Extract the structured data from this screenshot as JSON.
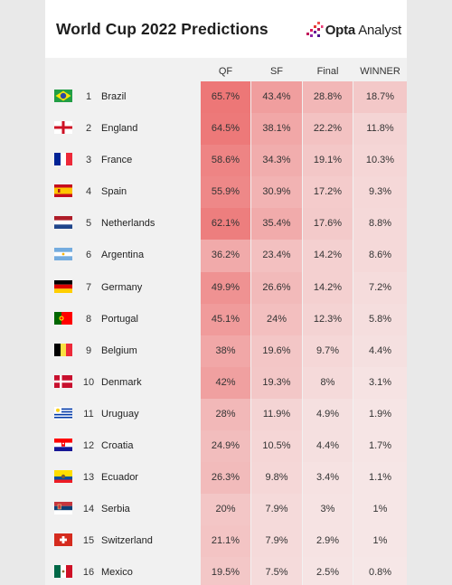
{
  "title": "World Cup 2022 Predictions",
  "brand": {
    "name_bold": "Opta",
    "name_light": " Analyst",
    "logo_icon": "opta-logo-icon"
  },
  "columns": {
    "qf": "QF",
    "sf": "SF",
    "final": "Final",
    "winner": "WINNER"
  },
  "colors": {
    "heat_base": "#f27b7b",
    "background": "#f1f1f1"
  },
  "teams": [
    {
      "rank": "1",
      "name": "Brazil",
      "flag": "brazil-flag-icon",
      "qf": "65.7%",
      "sf": "43.4%",
      "final": "28.8%",
      "winner": "18.7%",
      "qf_v": 65.7,
      "sf_v": 43.4,
      "final_v": 28.8,
      "winner_v": 18.7
    },
    {
      "rank": "2",
      "name": "England",
      "flag": "england-flag-icon",
      "qf": "64.5%",
      "sf": "38.1%",
      "final": "22.2%",
      "winner": "11.8%",
      "qf_v": 64.5,
      "sf_v": 38.1,
      "final_v": 22.2,
      "winner_v": 11.8
    },
    {
      "rank": "3",
      "name": "France",
      "flag": "france-flag-icon",
      "qf": "58.6%",
      "sf": "34.3%",
      "final": "19.1%",
      "winner": "10.3%",
      "qf_v": 58.6,
      "sf_v": 34.3,
      "final_v": 19.1,
      "winner_v": 10.3
    },
    {
      "rank": "4",
      "name": "Spain",
      "flag": "spain-flag-icon",
      "qf": "55.9%",
      "sf": "30.9%",
      "final": "17.2%",
      "winner": "9.3%",
      "qf_v": 55.9,
      "sf_v": 30.9,
      "final_v": 17.2,
      "winner_v": 9.3
    },
    {
      "rank": "5",
      "name": "Netherlands",
      "flag": "netherlands-flag-icon",
      "qf": "62.1%",
      "sf": "35.4%",
      "final": "17.6%",
      "winner": "8.8%",
      "qf_v": 62.1,
      "sf_v": 35.4,
      "final_v": 17.6,
      "winner_v": 8.8
    },
    {
      "rank": "6",
      "name": "Argentina",
      "flag": "argentina-flag-icon",
      "qf": "36.2%",
      "sf": "23.4%",
      "final": "14.2%",
      "winner": "8.6%",
      "qf_v": 36.2,
      "sf_v": 23.4,
      "final_v": 14.2,
      "winner_v": 8.6
    },
    {
      "rank": "7",
      "name": "Germany",
      "flag": "germany-flag-icon",
      "qf": "49.9%",
      "sf": "26.6%",
      "final": "14.2%",
      "winner": "7.2%",
      "qf_v": 49.9,
      "sf_v": 26.6,
      "final_v": 14.2,
      "winner_v": 7.2
    },
    {
      "rank": "8",
      "name": "Portugal",
      "flag": "portugal-flag-icon",
      "qf": "45.1%",
      "sf": "24%",
      "final": "12.3%",
      "winner": "5.8%",
      "qf_v": 45.1,
      "sf_v": 24,
      "final_v": 12.3,
      "winner_v": 5.8
    },
    {
      "rank": "9",
      "name": "Belgium",
      "flag": "belgium-flag-icon",
      "qf": "38%",
      "sf": "19.6%",
      "final": "9.7%",
      "winner": "4.4%",
      "qf_v": 38,
      "sf_v": 19.6,
      "final_v": 9.7,
      "winner_v": 4.4
    },
    {
      "rank": "10",
      "name": "Denmark",
      "flag": "denmark-flag-icon",
      "qf": "42%",
      "sf": "19.3%",
      "final": "8%",
      "winner": "3.1%",
      "qf_v": 42,
      "sf_v": 19.3,
      "final_v": 8,
      "winner_v": 3.1
    },
    {
      "rank": "11",
      "name": "Uruguay",
      "flag": "uruguay-flag-icon",
      "qf": "28%",
      "sf": "11.9%",
      "final": "4.9%",
      "winner": "1.9%",
      "qf_v": 28,
      "sf_v": 11.9,
      "final_v": 4.9,
      "winner_v": 1.9
    },
    {
      "rank": "12",
      "name": "Croatia",
      "flag": "croatia-flag-icon",
      "qf": "24.9%",
      "sf": "10.5%",
      "final": "4.4%",
      "winner": "1.7%",
      "qf_v": 24.9,
      "sf_v": 10.5,
      "final_v": 4.4,
      "winner_v": 1.7
    },
    {
      "rank": "13",
      "name": "Ecuador",
      "flag": "ecuador-flag-icon",
      "qf": "26.3%",
      "sf": "9.8%",
      "final": "3.4%",
      "winner": "1.1%",
      "qf_v": 26.3,
      "sf_v": 9.8,
      "final_v": 3.4,
      "winner_v": 1.1
    },
    {
      "rank": "14",
      "name": "Serbia",
      "flag": "serbia-flag-icon",
      "qf": "20%",
      "sf": "7.9%",
      "final": "3%",
      "winner": "1%",
      "qf_v": 20,
      "sf_v": 7.9,
      "final_v": 3,
      "winner_v": 1
    },
    {
      "rank": "15",
      "name": "Switzerland",
      "flag": "switzerland-flag-icon",
      "qf": "21.1%",
      "sf": "7.9%",
      "final": "2.9%",
      "winner": "1%",
      "qf_v": 21.1,
      "sf_v": 7.9,
      "final_v": 2.9,
      "winner_v": 1
    },
    {
      "rank": "16",
      "name": "Mexico",
      "flag": "mexico-flag-icon",
      "qf": "19.5%",
      "sf": "7.5%",
      "final": "2.5%",
      "winner": "0.8%",
      "qf_v": 19.5,
      "sf_v": 7.5,
      "final_v": 2.5,
      "winner_v": 0.8
    }
  ]
}
